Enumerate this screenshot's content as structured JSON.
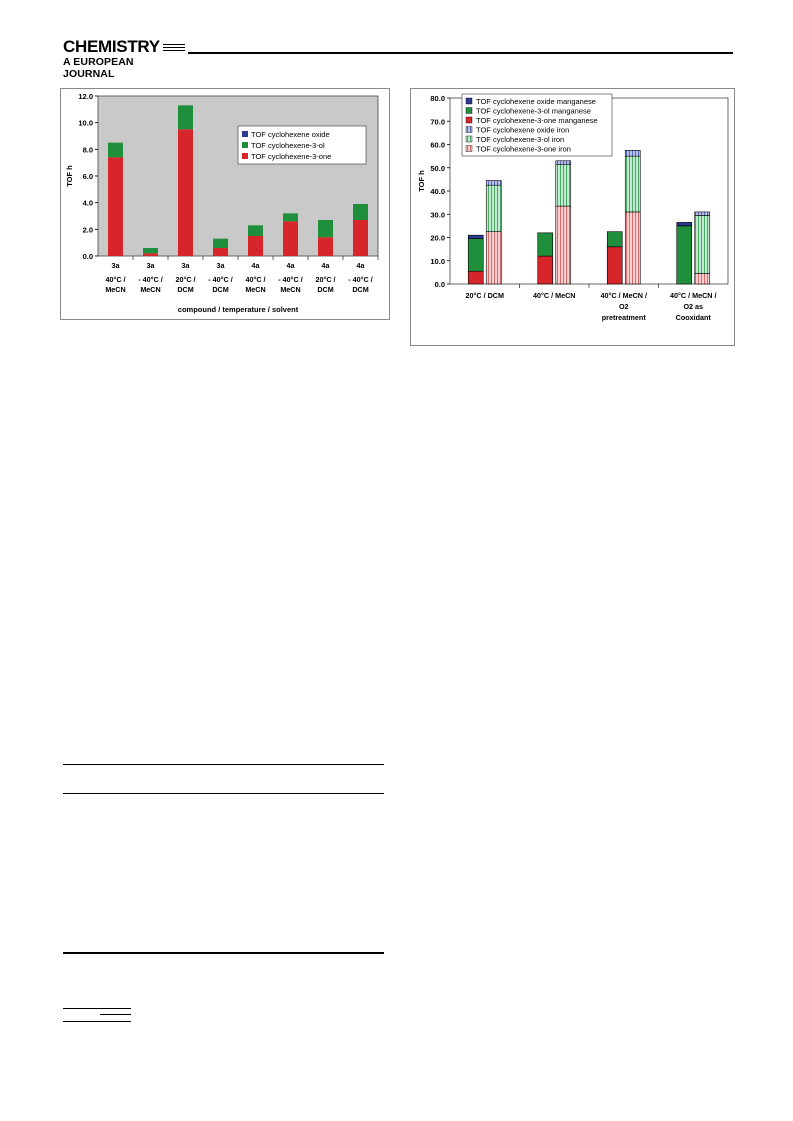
{
  "header": {
    "journal_title": "CHEMISTRY",
    "journal_subtitle": "A EUROPEAN JOURNAL"
  },
  "chart_data": [
    {
      "type": "bar",
      "stacked": true,
      "ylabel": "TOF h",
      "xlabel": "compound / temperature / solvent",
      "ylim": [
        0,
        12
      ],
      "yticks": [
        "0.0",
        "2.0",
        "4.0",
        "6.0",
        "8.0",
        "10.0",
        "12.0"
      ],
      "legend_position": "top-right",
      "categories": [
        [
          "3a",
          "40°C /",
          "MeCN"
        ],
        [
          "3a",
          "- 40°C /",
          "MeCN"
        ],
        [
          "3a",
          "20°C /",
          "DCM"
        ],
        [
          "3a",
          "- 40°C /",
          "DCM"
        ],
        [
          "4a",
          "40°C /",
          "MeCN"
        ],
        [
          "4a",
          "- 40°C /",
          "MeCN"
        ],
        [
          "4a",
          "20°C /",
          "DCM"
        ],
        [
          "4a",
          "- 40°C /",
          "DCM"
        ]
      ],
      "series": [
        {
          "name": "TOF cyclohexene-3-one",
          "color": "#d7262b",
          "values": [
            7.4,
            0.2,
            9.5,
            0.6,
            1.5,
            2.6,
            1.4,
            2.7
          ]
        },
        {
          "name": "TOF cyclohexene-3-ol",
          "color": "#1f8f3c",
          "values": [
            1.1,
            0.4,
            1.8,
            0.7,
            0.8,
            0.6,
            1.3,
            1.2
          ]
        },
        {
          "name": "TOF cyclohexene oxide",
          "color": "#2c3a8f",
          "values": [
            0,
            0,
            0,
            0,
            0,
            0,
            0,
            0
          ]
        }
      ],
      "grid": false
    },
    {
      "type": "bar",
      "stacked": true,
      "grouped": true,
      "ylabel": "TOF h",
      "ylim": [
        0,
        80
      ],
      "yticks": [
        "0.0",
        "10.0",
        "20.0",
        "30.0",
        "40.0",
        "50.0",
        "60.0",
        "70.0",
        "80.0"
      ],
      "legend_position": "top-left",
      "categories": [
        [
          "20°C / DCM"
        ],
        [
          "40°C / MeCN"
        ],
        [
          "40°C / MeCN /",
          "O2",
          "pretreatment"
        ],
        [
          "40°C / MeCN /",
          "O2 as",
          "Cooxidant"
        ]
      ],
      "groups": [
        "manganese",
        "iron"
      ],
      "series": [
        {
          "name": "TOF cyclohexene oxide manganese",
          "group": "manganese",
          "color": "#2c3a8f",
          "values": [
            1.5,
            0,
            0,
            1.5
          ]
        },
        {
          "name": "TOF cyclohexene-3-ol manganese",
          "group": "manganese",
          "color": "#1f8f3c",
          "values": [
            14,
            10,
            6.5,
            25
          ]
        },
        {
          "name": "TOF cyclohexene-3-one manganese",
          "group": "manganese",
          "color": "#d7262b",
          "values": [
            5.5,
            12,
            16,
            0
          ]
        },
        {
          "name": "TOF cyclohexene oxide iron",
          "group": "iron",
          "color": "#9aa6e0",
          "values": [
            2,
            1.5,
            2.5,
            1.5
          ]
        },
        {
          "name": "TOF cyclohexene-3-ol iron",
          "group": "iron",
          "color": "#8fd6a0",
          "values": [
            20,
            18,
            24,
            25
          ]
        },
        {
          "name": "TOF cyclohexene-3-one iron",
          "group": "iron",
          "color": "#f2a3a3",
          "values": [
            22.5,
            33.5,
            31,
            4.5
          ]
        }
      ],
      "grid": false
    }
  ]
}
